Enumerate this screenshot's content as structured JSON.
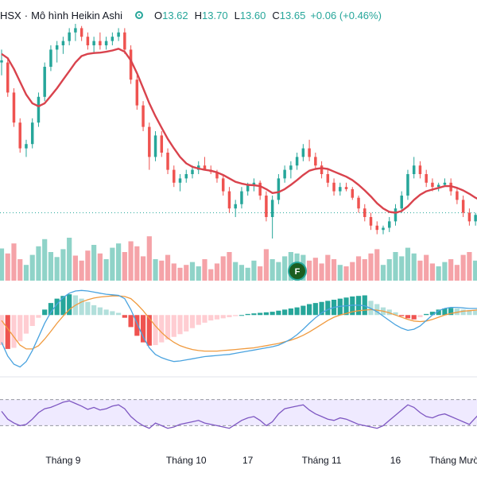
{
  "legend": {
    "symbol": "HSX",
    "separator": "·",
    "chart_style": "Mô hình Heikin Ashi",
    "open_key": "O",
    "open_val": "13.62",
    "high_key": "H",
    "high_val": "13.70",
    "low_key": "L",
    "low_val": "13.60",
    "close_key": "C",
    "close_val": "13.65",
    "change": "+0.06 (+0.46%)",
    "status_icon": "market-open-dot-icon"
  },
  "event_flag": {
    "label": "F"
  },
  "colors": {
    "up": "#26a69a",
    "down": "#ef5350",
    "ma_line": "#d9434d",
    "vol_up": "#8fd3c8",
    "vol_down": "#f5a3a8",
    "macd_line": "#4aa3df",
    "signal_line": "#f09a3e",
    "hist_up_strong": "#26a69a",
    "hist_up_weak": "#b2dfdb",
    "hist_down_strong": "#ef5350",
    "hist_down_weak": "#ffcdd2",
    "rsi_line": "#7e57c2",
    "rsi_band": "#efeaff"
  },
  "chart_data": {
    "type": "candlestick",
    "style": "Heikin Ashi",
    "price_range": [
      11.3,
      16.3
    ],
    "last_close_line": "dotted",
    "x_labels": [
      "Tháng 9",
      "Tháng 10",
      "17",
      "Tháng 11",
      "16",
      "Tháng Mười hai"
    ],
    "x_label_index": [
      10,
      30,
      40,
      52,
      64,
      75
    ],
    "candles": [
      [
        15.4,
        15.7,
        15.1,
        15.45
      ],
      [
        15.4,
        15.5,
        14.6,
        14.7
      ],
      [
        14.7,
        14.8,
        13.9,
        14.0
      ],
      [
        14.0,
        14.1,
        13.3,
        13.4
      ],
      [
        13.4,
        13.6,
        13.2,
        13.5
      ],
      [
        13.5,
        14.1,
        13.4,
        14.0
      ],
      [
        14.0,
        14.7,
        13.9,
        14.6
      ],
      [
        14.6,
        15.4,
        14.5,
        15.3
      ],
      [
        15.3,
        15.8,
        15.2,
        15.7
      ],
      [
        15.7,
        15.9,
        15.4,
        15.8
      ],
      [
        15.8,
        16.0,
        15.6,
        15.9
      ],
      [
        15.9,
        16.2,
        15.8,
        16.1
      ],
      [
        16.1,
        16.3,
        15.9,
        16.2
      ],
      [
        16.2,
        16.25,
        15.9,
        16.0
      ],
      [
        16.0,
        16.1,
        15.7,
        15.8
      ],
      [
        15.8,
        16.0,
        15.6,
        15.9
      ],
      [
        15.9,
        16.1,
        15.7,
        15.8
      ],
      [
        15.8,
        16.0,
        15.7,
        15.9
      ],
      [
        15.9,
        16.1,
        15.8,
        16.0
      ],
      [
        16.0,
        16.2,
        15.9,
        16.1
      ],
      [
        16.1,
        16.2,
        15.6,
        15.7
      ],
      [
        15.7,
        15.8,
        14.9,
        15.0
      ],
      [
        15.0,
        15.1,
        14.3,
        14.4
      ],
      [
        14.4,
        14.5,
        13.8,
        13.9
      ],
      [
        13.9,
        14.0,
        12.9,
        13.2
      ],
      [
        13.2,
        13.8,
        13.1,
        13.7
      ],
      [
        13.7,
        13.8,
        13.2,
        13.3
      ],
      [
        13.3,
        13.4,
        12.8,
        12.9
      ],
      [
        12.9,
        13.0,
        12.5,
        12.6
      ],
      [
        12.6,
        12.8,
        12.4,
        12.7
      ],
      [
        12.7,
        12.9,
        12.6,
        12.8
      ],
      [
        12.8,
        13.0,
        12.7,
        12.9
      ],
      [
        12.9,
        13.1,
        12.8,
        13.0
      ],
      [
        13.0,
        13.2,
        12.9,
        12.9
      ],
      [
        12.9,
        13.0,
        12.8,
        12.85
      ],
      [
        12.85,
        12.9,
        12.6,
        12.7
      ],
      [
        12.7,
        12.8,
        12.3,
        12.4
      ],
      [
        12.4,
        12.5,
        11.9,
        12.0
      ],
      [
        12.0,
        12.2,
        11.8,
        12.1
      ],
      [
        12.1,
        12.5,
        12.0,
        12.4
      ],
      [
        12.4,
        12.6,
        12.3,
        12.55
      ],
      [
        12.55,
        12.7,
        12.4,
        12.6
      ],
      [
        12.6,
        12.65,
        12.2,
        12.3
      ],
      [
        12.3,
        12.4,
        11.7,
        11.8
      ],
      [
        11.8,
        12.3,
        11.3,
        12.2
      ],
      [
        12.2,
        12.8,
        12.1,
        12.7
      ],
      [
        12.7,
        13.0,
        12.6,
        12.9
      ],
      [
        12.9,
        13.1,
        12.7,
        13.0
      ],
      [
        13.0,
        13.3,
        12.9,
        13.2
      ],
      [
        13.2,
        13.5,
        13.1,
        13.4
      ],
      [
        13.4,
        13.6,
        13.1,
        13.2
      ],
      [
        13.2,
        13.3,
        12.9,
        13.0
      ],
      [
        13.0,
        13.1,
        12.7,
        12.8
      ],
      [
        12.8,
        12.9,
        12.5,
        12.6
      ],
      [
        12.6,
        12.7,
        12.3,
        12.4
      ],
      [
        12.4,
        12.6,
        12.3,
        12.5
      ],
      [
        12.5,
        12.6,
        12.4,
        12.45
      ],
      [
        12.45,
        12.5,
        12.2,
        12.25
      ],
      [
        12.25,
        12.3,
        11.9,
        12.0
      ],
      [
        12.0,
        12.1,
        11.7,
        11.8
      ],
      [
        11.8,
        11.9,
        11.5,
        11.6
      ],
      [
        11.6,
        11.7,
        11.4,
        11.5
      ],
      [
        11.5,
        11.6,
        11.4,
        11.55
      ],
      [
        11.55,
        11.8,
        11.45,
        11.7
      ],
      [
        11.7,
        12.1,
        11.6,
        12.0
      ],
      [
        12.0,
        12.4,
        11.9,
        12.3
      ],
      [
        12.3,
        12.9,
        12.2,
        12.8
      ],
      [
        12.8,
        13.2,
        12.7,
        13.0
      ],
      [
        13.0,
        13.1,
        12.7,
        12.8
      ],
      [
        12.8,
        12.9,
        12.5,
        12.6
      ],
      [
        12.6,
        12.7,
        12.4,
        12.5
      ],
      [
        12.5,
        12.6,
        12.4,
        12.55
      ],
      [
        12.55,
        12.7,
        12.5,
        12.6
      ],
      [
        12.6,
        12.7,
        12.3,
        12.4
      ],
      [
        12.4,
        12.5,
        12.1,
        12.2
      ],
      [
        12.2,
        12.3,
        11.8,
        11.9
      ],
      [
        11.9,
        12.0,
        11.6,
        11.7
      ],
      [
        11.7,
        11.9,
        11.6,
        11.85
      ],
      [
        11.85,
        12.0,
        11.7,
        11.8
      ],
      [
        11.8,
        12.0,
        11.7,
        11.9
      ]
    ],
    "ma": [
      15.6,
      15.5,
      15.25,
      14.95,
      14.65,
      14.45,
      14.38,
      14.45,
      14.62,
      14.8,
      15.0,
      15.2,
      15.4,
      15.55,
      15.6,
      15.62,
      15.63,
      15.65,
      15.68,
      15.72,
      15.65,
      15.45,
      15.15,
      14.8,
      14.45,
      14.15,
      13.88,
      13.62,
      13.4,
      13.2,
      13.05,
      12.97,
      12.93,
      12.9,
      12.88,
      12.84,
      12.78,
      12.7,
      12.62,
      12.58,
      12.55,
      12.54,
      12.52,
      12.45,
      12.36,
      12.38,
      12.45,
      12.55,
      12.66,
      12.78,
      12.88,
      12.92,
      12.94,
      12.92,
      12.86,
      12.8,
      12.74,
      12.66,
      12.55,
      12.42,
      12.28,
      12.12,
      12.0,
      11.92,
      11.9,
      11.94,
      12.05,
      12.2,
      12.32,
      12.4,
      12.44,
      12.48,
      12.52,
      12.52,
      12.48,
      12.42,
      12.34,
      12.25,
      12.18,
      12.12
    ],
    "volume": [
      [
        45,
        "up"
      ],
      [
        38,
        "dn"
      ],
      [
        52,
        "dn"
      ],
      [
        30,
        "dn"
      ],
      [
        22,
        "up"
      ],
      [
        36,
        "up"
      ],
      [
        48,
        "up"
      ],
      [
        58,
        "up"
      ],
      [
        40,
        "up"
      ],
      [
        33,
        "up"
      ],
      [
        44,
        "up"
      ],
      [
        60,
        "up"
      ],
      [
        35,
        "dn"
      ],
      [
        28,
        "dn"
      ],
      [
        42,
        "dn"
      ],
      [
        50,
        "up"
      ],
      [
        38,
        "dn"
      ],
      [
        30,
        "up"
      ],
      [
        46,
        "up"
      ],
      [
        52,
        "up"
      ],
      [
        40,
        "dn"
      ],
      [
        55,
        "dn"
      ],
      [
        48,
        "dn"
      ],
      [
        34,
        "dn"
      ],
      [
        62,
        "dn"
      ],
      [
        30,
        "up"
      ],
      [
        28,
        "dn"
      ],
      [
        36,
        "dn"
      ],
      [
        24,
        "dn"
      ],
      [
        18,
        "dn"
      ],
      [
        22,
        "dn"
      ],
      [
        26,
        "up"
      ],
      [
        20,
        "up"
      ],
      [
        30,
        "dn"
      ],
      [
        16,
        "dn"
      ],
      [
        24,
        "dn"
      ],
      [
        34,
        "dn"
      ],
      [
        40,
        "dn"
      ],
      [
        26,
        "up"
      ],
      [
        22,
        "up"
      ],
      [
        18,
        "up"
      ],
      [
        28,
        "up"
      ],
      [
        20,
        "dn"
      ],
      [
        44,
        "dn"
      ],
      [
        30,
        "up"
      ],
      [
        26,
        "up"
      ],
      [
        34,
        "up"
      ],
      [
        40,
        "up"
      ],
      [
        38,
        "up"
      ],
      [
        36,
        "up"
      ],
      [
        28,
        "dn"
      ],
      [
        32,
        "dn"
      ],
      [
        24,
        "dn"
      ],
      [
        36,
        "dn"
      ],
      [
        30,
        "dn"
      ],
      [
        22,
        "up"
      ],
      [
        20,
        "dn"
      ],
      [
        26,
        "dn"
      ],
      [
        34,
        "dn"
      ],
      [
        30,
        "dn"
      ],
      [
        38,
        "dn"
      ],
      [
        44,
        "dn"
      ],
      [
        22,
        "up"
      ],
      [
        30,
        "up"
      ],
      [
        40,
        "up"
      ],
      [
        34,
        "up"
      ],
      [
        46,
        "up"
      ],
      [
        38,
        "up"
      ],
      [
        28,
        "dn"
      ],
      [
        36,
        "dn"
      ],
      [
        24,
        "dn"
      ],
      [
        20,
        "up"
      ],
      [
        26,
        "up"
      ],
      [
        30,
        "dn"
      ],
      [
        22,
        "dn"
      ],
      [
        36,
        "dn"
      ],
      [
        40,
        "dn"
      ],
      [
        28,
        "up"
      ],
      [
        24,
        "dn"
      ],
      [
        30,
        "up"
      ]
    ],
    "volume_range": [
      0,
      70
    ],
    "macd": {
      "range": [
        -1.0,
        0.6
      ],
      "hist": [
        -0.55,
        -0.62,
        -0.6,
        -0.48,
        -0.34,
        -0.2,
        -0.05,
        0.1,
        0.22,
        0.3,
        0.35,
        0.38,
        0.36,
        0.3,
        0.24,
        0.18,
        0.14,
        0.1,
        0.07,
        0.04,
        -0.05,
        -0.22,
        -0.38,
        -0.5,
        -0.56,
        -0.55,
        -0.5,
        -0.45,
        -0.4,
        -0.35,
        -0.3,
        -0.24,
        -0.18,
        -0.14,
        -0.1,
        -0.08,
        -0.06,
        -0.04,
        -0.02,
        0.0,
        0.02,
        0.03,
        0.04,
        0.05,
        0.06,
        0.08,
        0.1,
        0.12,
        0.14,
        0.17,
        0.2,
        0.22,
        0.24,
        0.26,
        0.28,
        0.3,
        0.32,
        0.34,
        0.35,
        0.36,
        0.26,
        0.2,
        0.14,
        0.1,
        0.05,
        -0.02,
        -0.06,
        -0.08,
        -0.04,
        0.02,
        0.06,
        0.1,
        0.12,
        0.13,
        0.12,
        0.1,
        0.09,
        0.08,
        0.08,
        0.08
      ],
      "macd_line": [
        -0.5,
        -0.75,
        -0.9,
        -0.95,
        -0.85,
        -0.65,
        -0.4,
        -0.15,
        0.05,
        0.2,
        0.32,
        0.4,
        0.44,
        0.45,
        0.44,
        0.42,
        0.4,
        0.38,
        0.37,
        0.36,
        0.3,
        0.1,
        -0.15,
        -0.4,
        -0.6,
        -0.72,
        -0.78,
        -0.82,
        -0.85,
        -0.84,
        -0.82,
        -0.8,
        -0.78,
        -0.76,
        -0.75,
        -0.74,
        -0.73,
        -0.72,
        -0.7,
        -0.68,
        -0.66,
        -0.64,
        -0.62,
        -0.6,
        -0.58,
        -0.55,
        -0.5,
        -0.44,
        -0.36,
        -0.26,
        -0.15,
        -0.05,
        0.04,
        0.1,
        0.14,
        0.16,
        0.17,
        0.18,
        0.18,
        0.17,
        0.12,
        0.06,
        -0.02,
        -0.1,
        -0.18,
        -0.24,
        -0.28,
        -0.26,
        -0.2,
        -0.1,
        0.0,
        0.08,
        0.12,
        0.14,
        0.14,
        0.13,
        0.12,
        0.12,
        0.12,
        0.12
      ],
      "signal_line": [
        -0.1,
        -0.25,
        -0.4,
        -0.55,
        -0.62,
        -0.62,
        -0.56,
        -0.44,
        -0.3,
        -0.15,
        -0.02,
        0.1,
        0.18,
        0.24,
        0.28,
        0.31,
        0.33,
        0.34,
        0.35,
        0.35,
        0.34,
        0.3,
        0.2,
        0.08,
        -0.06,
        -0.2,
        -0.32,
        -0.42,
        -0.5,
        -0.56,
        -0.6,
        -0.63,
        -0.65,
        -0.66,
        -0.66,
        -0.66,
        -0.65,
        -0.64,
        -0.63,
        -0.62,
        -0.61,
        -0.6,
        -0.58,
        -0.56,
        -0.54,
        -0.52,
        -0.49,
        -0.46,
        -0.42,
        -0.37,
        -0.31,
        -0.24,
        -0.17,
        -0.1,
        -0.04,
        0.0,
        0.03,
        0.06,
        0.08,
        0.09,
        0.1,
        0.09,
        0.07,
        0.04,
        0.0,
        -0.04,
        -0.08,
        -0.11,
        -0.12,
        -0.11,
        -0.08,
        -0.04,
        0.0,
        0.03,
        0.05,
        0.07,
        0.08,
        0.09,
        0.1,
        0.1
      ]
    },
    "rsi": {
      "range": [
        0,
        100
      ],
      "upper": 70,
      "lower": 30,
      "values": [
        52,
        40,
        34,
        30,
        32,
        40,
        50,
        56,
        58,
        62,
        66,
        68,
        64,
        60,
        55,
        58,
        54,
        56,
        60,
        62,
        56,
        44,
        36,
        30,
        26,
        34,
        30,
        26,
        28,
        32,
        34,
        36,
        38,
        34,
        32,
        30,
        28,
        26,
        32,
        38,
        42,
        44,
        38,
        30,
        36,
        48,
        56,
        58,
        60,
        62,
        54,
        48,
        44,
        40,
        38,
        42,
        40,
        36,
        32,
        30,
        28,
        26,
        30,
        38,
        46,
        54,
        62,
        58,
        50,
        44,
        42,
        46,
        48,
        44,
        40,
        36,
        32,
        42,
        52,
        60
      ]
    }
  }
}
